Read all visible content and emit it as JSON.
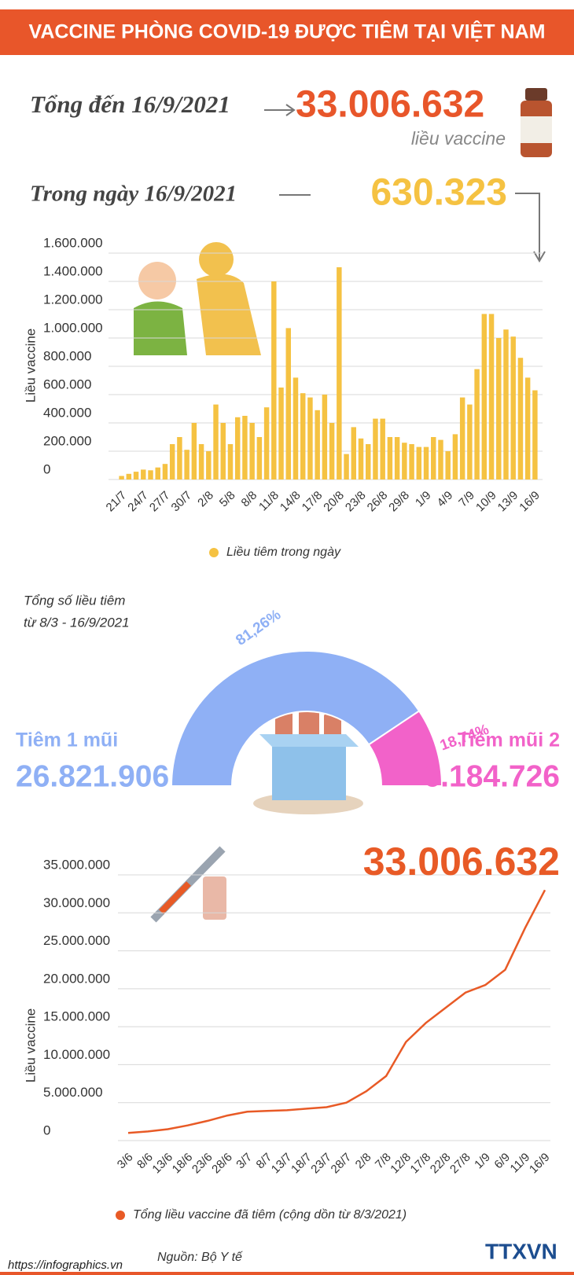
{
  "header": {
    "title": "VACCINE PHÒNG COVID-19 ĐƯỢC TIÊM TẠI VIỆT NAM"
  },
  "summary": {
    "total_label": "Tổng đến 16/9/2021",
    "total": "33.006.632",
    "total_unit": "liều vaccine",
    "day_label": "Trong ngày 16/9/2021",
    "day": "630.323"
  },
  "chart_data": [
    {
      "type": "bar",
      "y_label": "Liều vaccine",
      "categories": [
        "21/7",
        null,
        null,
        "24/7",
        null,
        null,
        "27/7",
        null,
        null,
        "30/7",
        null,
        null,
        "2/8",
        null,
        null,
        "5/8",
        null,
        null,
        "8/8",
        null,
        null,
        "11/8",
        null,
        null,
        "14/8",
        null,
        null,
        "17/8",
        null,
        null,
        "20/8",
        null,
        null,
        "23/8",
        null,
        null,
        "26/8",
        null,
        null,
        "29/8",
        null,
        null,
        "1/9",
        null,
        null,
        "4/9",
        null,
        null,
        "7/9",
        null,
        null,
        "10/9",
        null,
        null,
        "13/9",
        null,
        null,
        "16/9"
      ],
      "series": [
        {
          "name": "Liều tiêm trong ngày",
          "color": "#f5c242",
          "values": [
            25000,
            40000,
            55000,
            70000,
            65000,
            85000,
            110000,
            250000,
            300000,
            210000,
            400000,
            250000,
            200000,
            530000,
            400000,
            250000,
            440000,
            450000,
            400000,
            300000,
            510000,
            1400000,
            650000,
            1070000,
            720000,
            610000,
            580000,
            490000,
            600000,
            400000,
            1500000,
            180000,
            370000,
            290000,
            250000,
            430000,
            430000,
            300000,
            300000,
            260000,
            250000,
            230000,
            230000,
            300000,
            280000,
            200000,
            320000,
            580000,
            530000,
            780000,
            1170000,
            1170000,
            1000000,
            1060000,
            1010000,
            860000,
            720000,
            630323
          ]
        }
      ],
      "ylim": [
        0,
        1600000
      ],
      "yticks": [
        0,
        {
          "value": 200000,
          "label": "200.000"
        },
        {
          "value": 400000,
          "label": "400.000"
        },
        {
          "value": 600000,
          "label": "600.000"
        },
        {
          "value": 800000,
          "label": "800.000"
        },
        {
          "value": 1000000,
          "label": "1.000.000"
        },
        {
          "value": 1200000,
          "label": "1.200.000"
        },
        {
          "value": 1400000,
          "label": "1.400.000"
        },
        {
          "value": 1600000,
          "label": "1.600.000"
        }
      ],
      "grid": true
    },
    {
      "type": "donut",
      "title": [
        "Tổng số liều tiêm",
        "từ 8/3 - 16/9/2021"
      ],
      "categories": [
        "Tiêm 1 mũi",
        "Tiêm mũi 2"
      ],
      "values": [
        81.26,
        18.74
      ],
      "value_labels": [
        "81,26%",
        "18,74%"
      ],
      "dose_labels": [
        "26.821.906",
        "6.184.726"
      ],
      "colors": [
        "#8fb0f5",
        "#f262c9"
      ]
    },
    {
      "type": "line",
      "y_label": "Liều vaccine",
      "annotation": "33.006.632",
      "categories": [
        "3/6",
        "8/6",
        "13/6",
        "18/6",
        "23/6",
        "28/6",
        "3/7",
        "8/7",
        "13/7",
        "18/7",
        "23/7",
        "28/7",
        "2/8",
        "7/8",
        "12/8",
        "17/8",
        "22/8",
        "27/8",
        "1/9",
        "6/9",
        "11/9",
        "16/9"
      ],
      "series": [
        {
          "name": "Tổng liều vaccine đã tiêm (cộng dồn từ 8/3/2021)",
          "color": "#e85a26",
          "values": [
            1000000,
            1200000,
            1500000,
            2000000,
            2600000,
            3300000,
            3800000,
            3900000,
            4000000,
            4200000,
            4400000,
            5000000,
            6500000,
            8500000,
            13000000,
            15500000,
            17500000,
            19500000,
            20500000,
            22500000,
            28000000,
            33006632
          ]
        }
      ],
      "ylim": [
        0,
        35000000
      ],
      "yticks": [
        0,
        {
          "value": 5000000,
          "label": "5.000.000"
        },
        {
          "value": 10000000,
          "label": "10.000.000"
        },
        {
          "value": 15000000,
          "label": "15.000.000"
        },
        {
          "value": 20000000,
          "label": "20.000.000"
        },
        {
          "value": 25000000,
          "label": "25.000.000"
        },
        {
          "value": 30000000,
          "label": "30.000.000"
        },
        {
          "value": 35000000,
          "label": "35.000.000"
        }
      ],
      "grid": true
    }
  ],
  "footer": {
    "source": "Nguồn: Bộ Y tế",
    "url": "https://infographics.vn",
    "brand": "TTXVN"
  }
}
